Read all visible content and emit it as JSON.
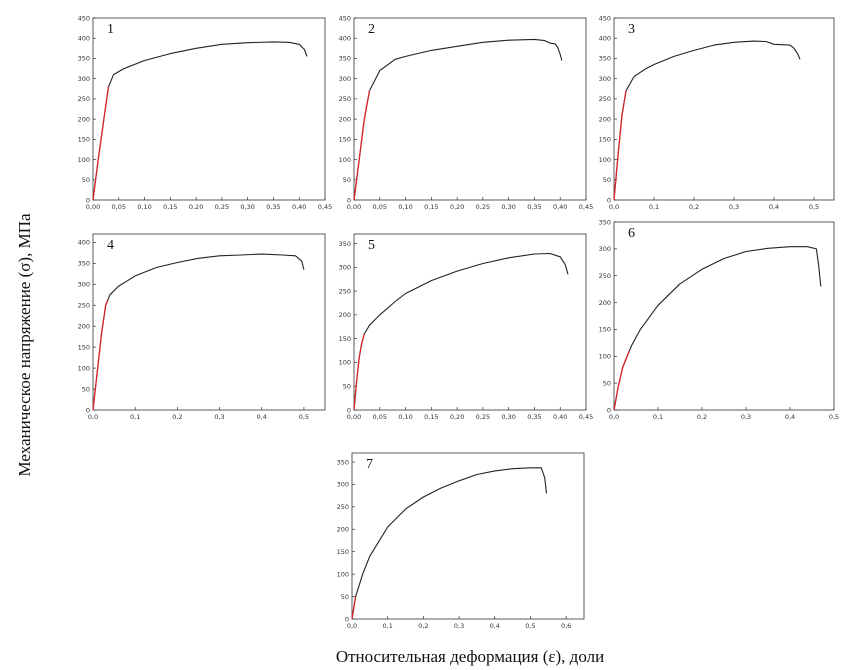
{
  "figure": {
    "ylabel": "Механическое напряжение (σ), МПа",
    "xlabel": "Относительная деформация (ε), доли"
  },
  "colors": {
    "curve": "#222222",
    "elastic": "#d9262b"
  },
  "chart_data": [
    {
      "type": "line",
      "label": "1",
      "x_ticks": [
        "0,00",
        "0,05",
        "0,10",
        "0,15",
        "0,20",
        "0,25",
        "0,30",
        "0,35",
        "0,40",
        "0,45"
      ],
      "xlim": [
        0,
        0.45
      ],
      "y_ticks": [
        "0",
        "50",
        "100",
        "150",
        "200",
        "250",
        "300",
        "350",
        "400",
        "450"
      ],
      "ylim": [
        0,
        450
      ],
      "elastic_end": 0.03,
      "points": [
        [
          0,
          0
        ],
        [
          0.01,
          100
        ],
        [
          0.02,
          190
        ],
        [
          0.03,
          280
        ],
        [
          0.04,
          310
        ],
        [
          0.06,
          325
        ],
        [
          0.1,
          345
        ],
        [
          0.15,
          362
        ],
        [
          0.2,
          375
        ],
        [
          0.25,
          385
        ],
        [
          0.3,
          389
        ],
        [
          0.35,
          391
        ],
        [
          0.38,
          390
        ],
        [
          0.4,
          385
        ],
        [
          0.41,
          372
        ],
        [
          0.415,
          355
        ]
      ]
    },
    {
      "type": "line",
      "label": "2",
      "x_ticks": [
        "0,00",
        "0,05",
        "0,10",
        "0,15",
        "0,20",
        "0,25",
        "0,30",
        "0,35",
        "0,40",
        "0,45"
      ],
      "xlim": [
        0,
        0.45
      ],
      "y_ticks": [
        "0",
        "50",
        "100",
        "150",
        "200",
        "250",
        "300",
        "350",
        "400",
        "450"
      ],
      "ylim": [
        0,
        450
      ],
      "elastic_end": 0.03,
      "points": [
        [
          0,
          0
        ],
        [
          0.01,
          100
        ],
        [
          0.02,
          200
        ],
        [
          0.03,
          270
        ],
        [
          0.05,
          320
        ],
        [
          0.08,
          348
        ],
        [
          0.1,
          355
        ],
        [
          0.15,
          370
        ],
        [
          0.2,
          380
        ],
        [
          0.25,
          390
        ],
        [
          0.3,
          395
        ],
        [
          0.35,
          397
        ],
        [
          0.37,
          394
        ],
        [
          0.38,
          388
        ],
        [
          0.39,
          386
        ],
        [
          0.395,
          378
        ],
        [
          0.4,
          360
        ],
        [
          0.403,
          345
        ]
      ]
    },
    {
      "type": "line",
      "label": "3",
      "x_ticks": [
        "0,0",
        "0,1",
        "0,2",
        "0,3",
        "0,4",
        "0,5"
      ],
      "xlim": [
        0,
        0.55
      ],
      "y_ticks": [
        "0",
        "50",
        "100",
        "150",
        "200",
        "250",
        "300",
        "350",
        "400",
        "450"
      ],
      "ylim": [
        0,
        450
      ],
      "elastic_end": 0.03,
      "points": [
        [
          0,
          0
        ],
        [
          0.01,
          110
        ],
        [
          0.02,
          210
        ],
        [
          0.03,
          270
        ],
        [
          0.05,
          305
        ],
        [
          0.08,
          325
        ],
        [
          0.1,
          335
        ],
        [
          0.15,
          355
        ],
        [
          0.2,
          370
        ],
        [
          0.25,
          383
        ],
        [
          0.3,
          390
        ],
        [
          0.35,
          393
        ],
        [
          0.38,
          392
        ],
        [
          0.4,
          385
        ],
        [
          0.42,
          384
        ],
        [
          0.44,
          383
        ],
        [
          0.45,
          375
        ],
        [
          0.46,
          360
        ],
        [
          0.465,
          348
        ]
      ]
    },
    {
      "type": "line",
      "label": "4",
      "x_ticks": [
        "0,0",
        "0,1",
        "0,2",
        "0,3",
        "0,4",
        "0,5"
      ],
      "xlim": [
        0,
        0.55
      ],
      "y_ticks": [
        "0",
        "50",
        "100",
        "150",
        "200",
        "250",
        "300",
        "350",
        "400"
      ],
      "ylim": [
        0,
        420
      ],
      "elastic_end": 0.035,
      "points": [
        [
          0,
          0
        ],
        [
          0.01,
          90
        ],
        [
          0.02,
          180
        ],
        [
          0.03,
          250
        ],
        [
          0.04,
          275
        ],
        [
          0.06,
          295
        ],
        [
          0.1,
          320
        ],
        [
          0.15,
          340
        ],
        [
          0.2,
          352
        ],
        [
          0.25,
          362
        ],
        [
          0.3,
          368
        ],
        [
          0.35,
          370
        ],
        [
          0.4,
          372
        ],
        [
          0.45,
          370
        ],
        [
          0.48,
          368
        ],
        [
          0.495,
          355
        ],
        [
          0.5,
          335
        ]
      ]
    },
    {
      "type": "line",
      "label": "5",
      "x_ticks": [
        "0,00",
        "0,05",
        "0,10",
        "0,15",
        "0,20",
        "0,25",
        "0,30",
        "0,35",
        "0,40",
        "0,45"
      ],
      "xlim": [
        0,
        0.45
      ],
      "y_ticks": [
        "0",
        "50",
        "100",
        "150",
        "200",
        "250",
        "300",
        "350"
      ],
      "ylim": [
        0,
        370
      ],
      "elastic_end": 0.02,
      "points": [
        [
          0,
          0
        ],
        [
          0.005,
          60
        ],
        [
          0.01,
          110
        ],
        [
          0.015,
          140
        ],
        [
          0.02,
          160
        ],
        [
          0.03,
          178
        ],
        [
          0.05,
          200
        ],
        [
          0.08,
          228
        ],
        [
          0.1,
          245
        ],
        [
          0.15,
          272
        ],
        [
          0.2,
          292
        ],
        [
          0.25,
          308
        ],
        [
          0.3,
          320
        ],
        [
          0.35,
          328
        ],
        [
          0.38,
          329
        ],
        [
          0.4,
          322
        ],
        [
          0.41,
          305
        ],
        [
          0.415,
          285
        ]
      ]
    },
    {
      "type": "line",
      "label": "6",
      "x_ticks": [
        "0,0",
        "0,1",
        "0,2",
        "0,3",
        "0,4",
        "0,5"
      ],
      "xlim": [
        0,
        0.5
      ],
      "y_ticks": [
        "0",
        "50",
        "100",
        "150",
        "200",
        "250",
        "300",
        "350"
      ],
      "ylim": [
        0,
        350
      ],
      "elastic_end": 0.035,
      "points": [
        [
          0,
          0
        ],
        [
          0.01,
          45
        ],
        [
          0.02,
          80
        ],
        [
          0.04,
          120
        ],
        [
          0.06,
          150
        ],
        [
          0.1,
          195
        ],
        [
          0.15,
          235
        ],
        [
          0.2,
          262
        ],
        [
          0.25,
          282
        ],
        [
          0.3,
          295
        ],
        [
          0.35,
          301
        ],
        [
          0.4,
          304
        ],
        [
          0.44,
          304
        ],
        [
          0.46,
          300
        ],
        [
          0.465,
          270
        ],
        [
          0.47,
          230
        ]
      ]
    },
    {
      "type": "line",
      "label": "7",
      "x_ticks": [
        "0,0",
        "0,1",
        "0,2",
        "0,3",
        "0,4",
        "0,5",
        "0,6"
      ],
      "xlim": [
        0,
        0.65
      ],
      "y_ticks": [
        "0",
        "50",
        "100",
        "150",
        "200",
        "250",
        "300",
        "350"
      ],
      "ylim": [
        0,
        370
      ],
      "elastic_end": 0.01,
      "points": [
        [
          0,
          0
        ],
        [
          0.01,
          50
        ],
        [
          0.03,
          100
        ],
        [
          0.05,
          140
        ],
        [
          0.1,
          205
        ],
        [
          0.15,
          245
        ],
        [
          0.2,
          272
        ],
        [
          0.25,
          292
        ],
        [
          0.3,
          308
        ],
        [
          0.35,
          322
        ],
        [
          0.4,
          330
        ],
        [
          0.45,
          335
        ],
        [
          0.5,
          337
        ],
        [
          0.53,
          337
        ],
        [
          0.54,
          315
        ],
        [
          0.545,
          280
        ]
      ]
    }
  ]
}
